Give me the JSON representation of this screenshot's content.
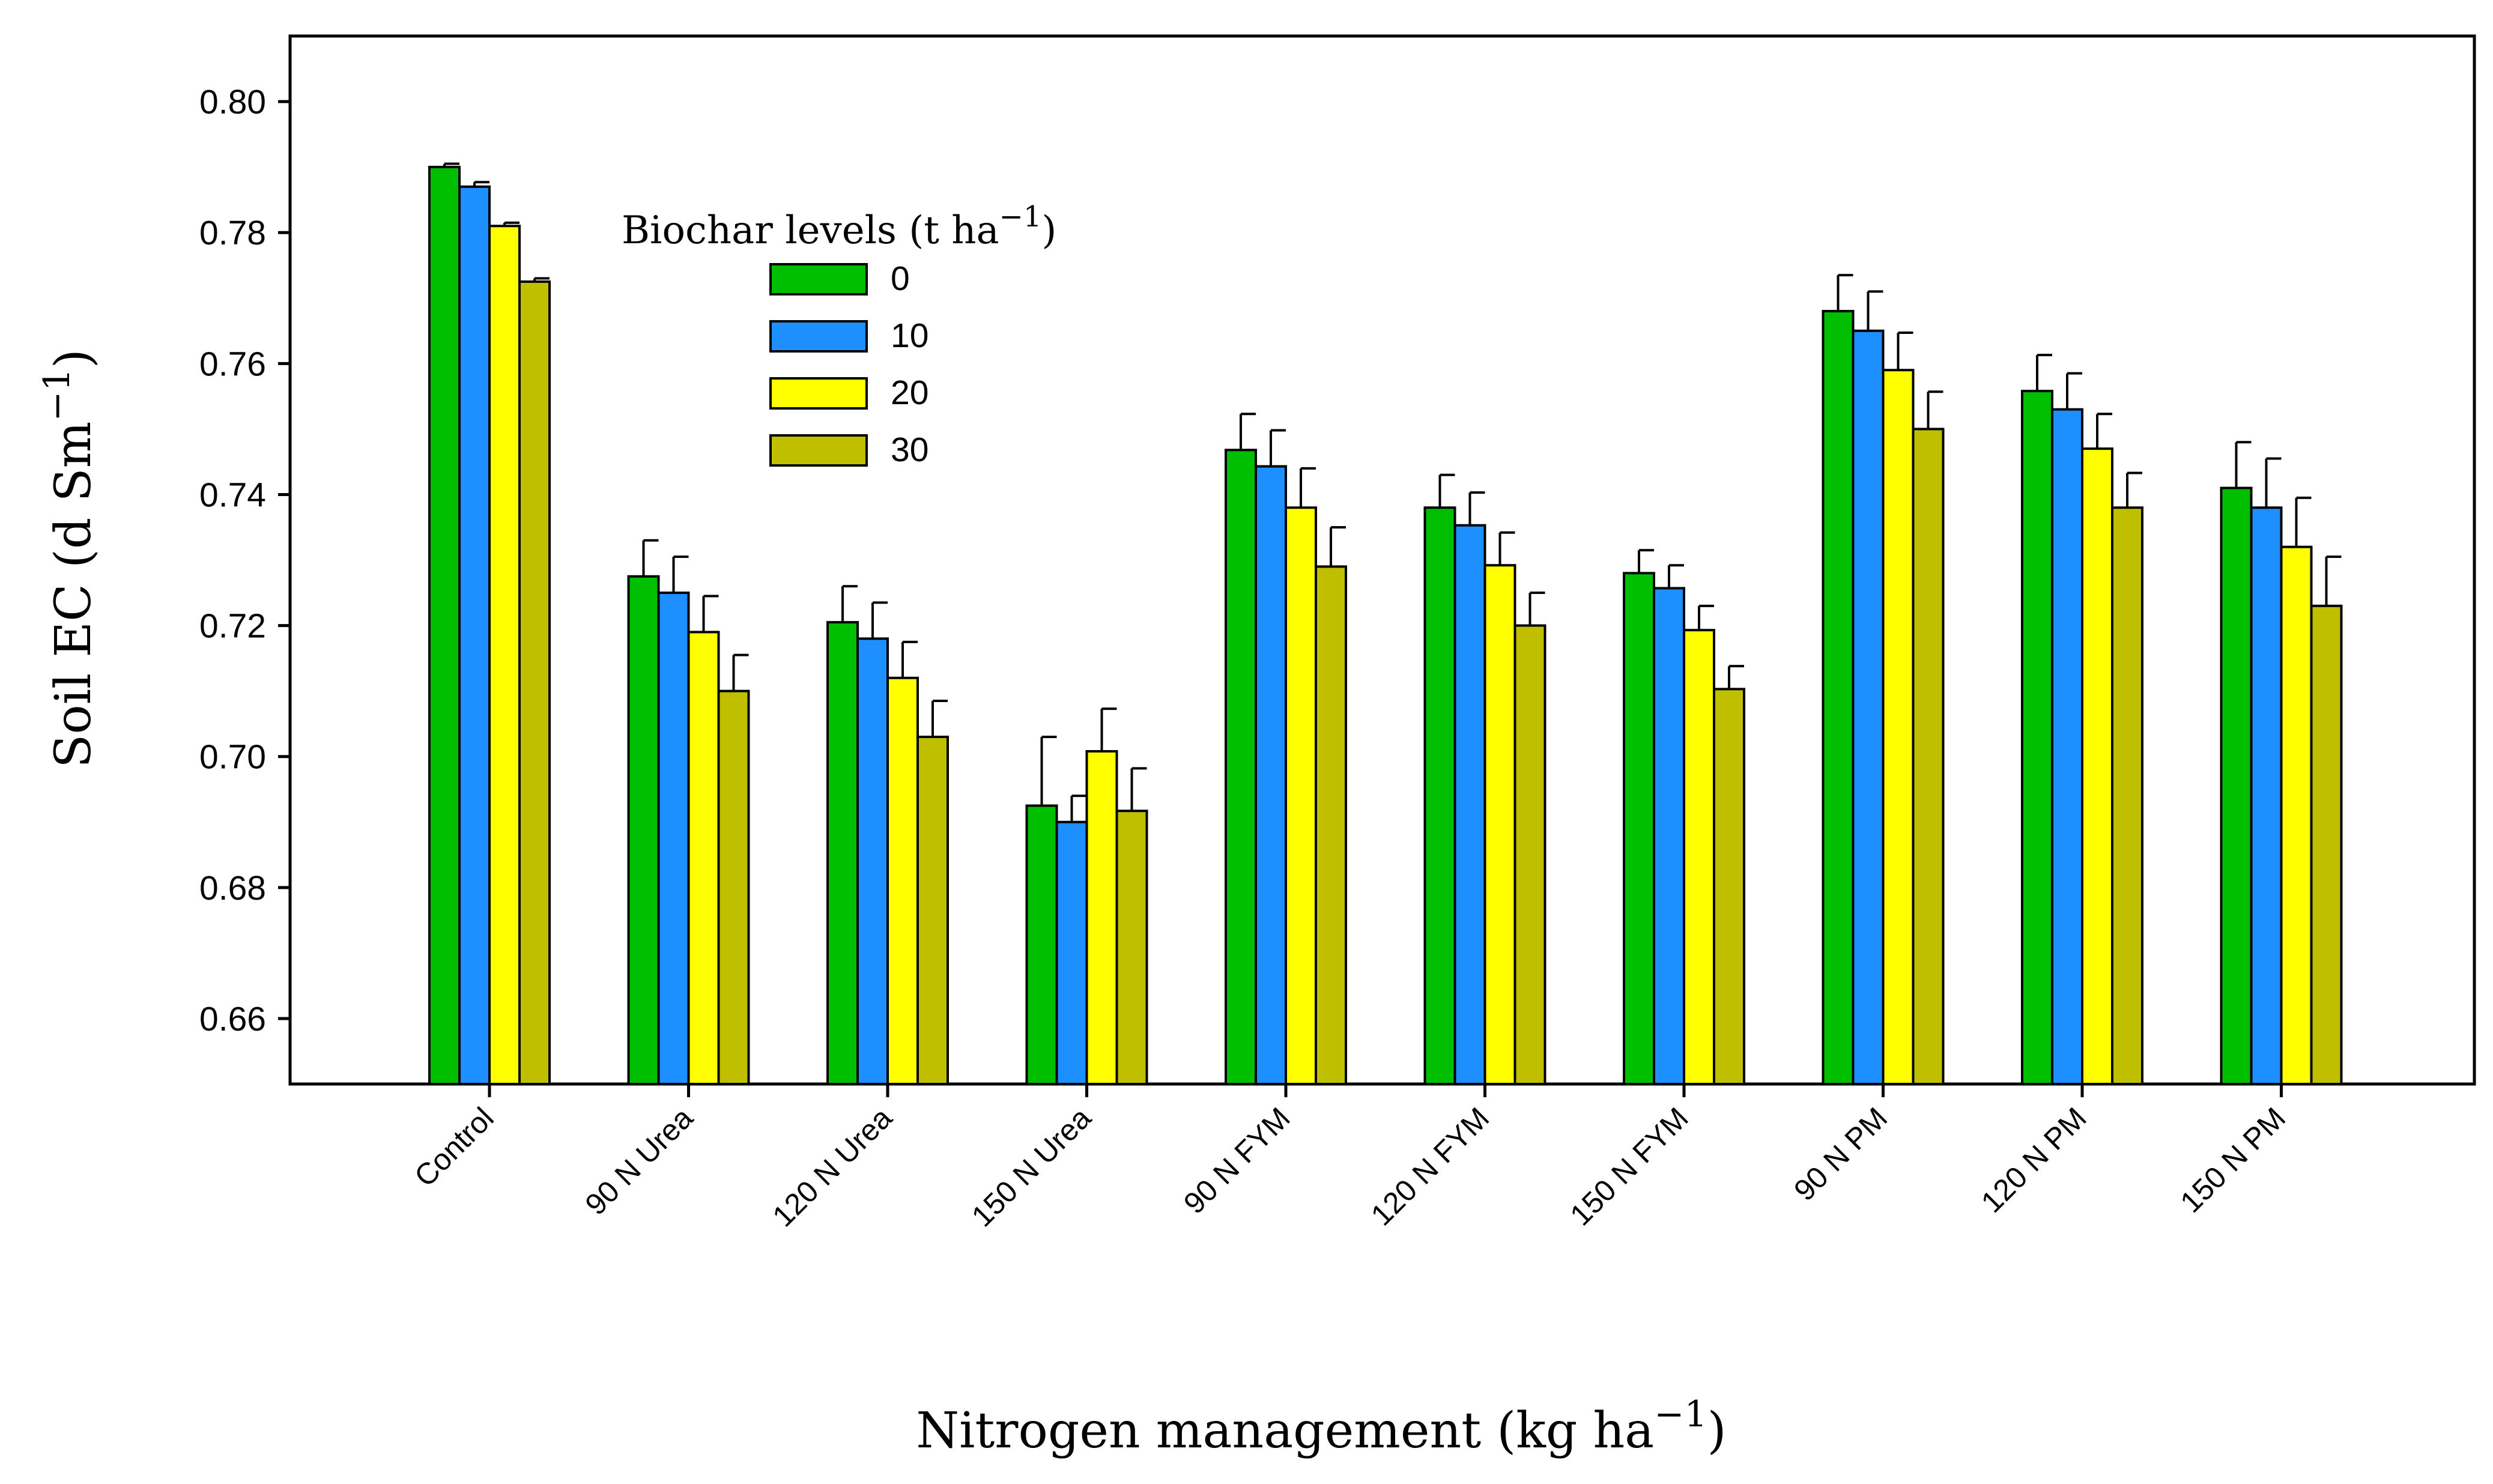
{
  "chart_data": {
    "type": "bar",
    "categories": [
      "Control",
      "90 N Urea",
      "120 N Urea",
      "150 N Urea",
      "90 N FYM",
      "120 N FYM",
      "150 N FYM",
      "90 N PM",
      "120 N PM",
      "150 N PM"
    ],
    "series": [
      {
        "name": "0",
        "color": "#00bf00",
        "values": [
          0.79,
          0.7275,
          0.7205,
          0.6925,
          0.7468,
          0.738,
          0.728,
          0.768,
          0.7558,
          0.741
        ],
        "errors": [
          0.0005,
          0.0055,
          0.0055,
          0.0105,
          0.0055,
          0.005,
          0.0035,
          0.0055,
          0.0055,
          0.007
        ]
      },
      {
        "name": "10",
        "color": "#1e8fff",
        "values": [
          0.787,
          0.725,
          0.718,
          0.69,
          0.7443,
          0.7353,
          0.7257,
          0.765,
          0.753,
          0.738
        ],
        "errors": [
          0.0007,
          0.0055,
          0.0055,
          0.004,
          0.0055,
          0.005,
          0.0035,
          0.006,
          0.0055,
          0.0075
        ]
      },
      {
        "name": "20",
        "color": "#ffff00",
        "values": [
          0.781,
          0.719,
          0.712,
          0.7008,
          0.738,
          0.7292,
          0.7193,
          0.759,
          0.747,
          0.732
        ],
        "errors": [
          0.0005,
          0.0055,
          0.0055,
          0.0065,
          0.006,
          0.005,
          0.0037,
          0.0057,
          0.0053,
          0.0075
        ]
      },
      {
        "name": "30",
        "color": "#bfbf00",
        "values": [
          0.7725,
          0.71,
          0.703,
          0.6917,
          0.729,
          0.72,
          0.7103,
          0.75,
          0.738,
          0.723
        ],
        "errors": [
          0.0005,
          0.0055,
          0.0055,
          0.0065,
          0.006,
          0.005,
          0.0035,
          0.0057,
          0.0053,
          0.0075
        ]
      }
    ],
    "ylim": [
      0.65,
      0.81
    ],
    "yticks": [
      "0.66",
      "0.68",
      "0.70",
      "0.72",
      "0.74",
      "0.76",
      "0.78",
      "0.80"
    ],
    "ylabel": "Soil EC (d Sm",
    "ylabel_sup": "−1",
    "ylabel_end": ")",
    "xlabel": "Nitrogen management (kg ha",
    "xlabel_sup": "−1",
    "xlabel_end": ")",
    "legend_title": "Biochar levels (t ha",
    "legend_title_sup": "−1",
    "legend_title_end": ")",
    "legend_position": "upper-left",
    "grid": false
  }
}
